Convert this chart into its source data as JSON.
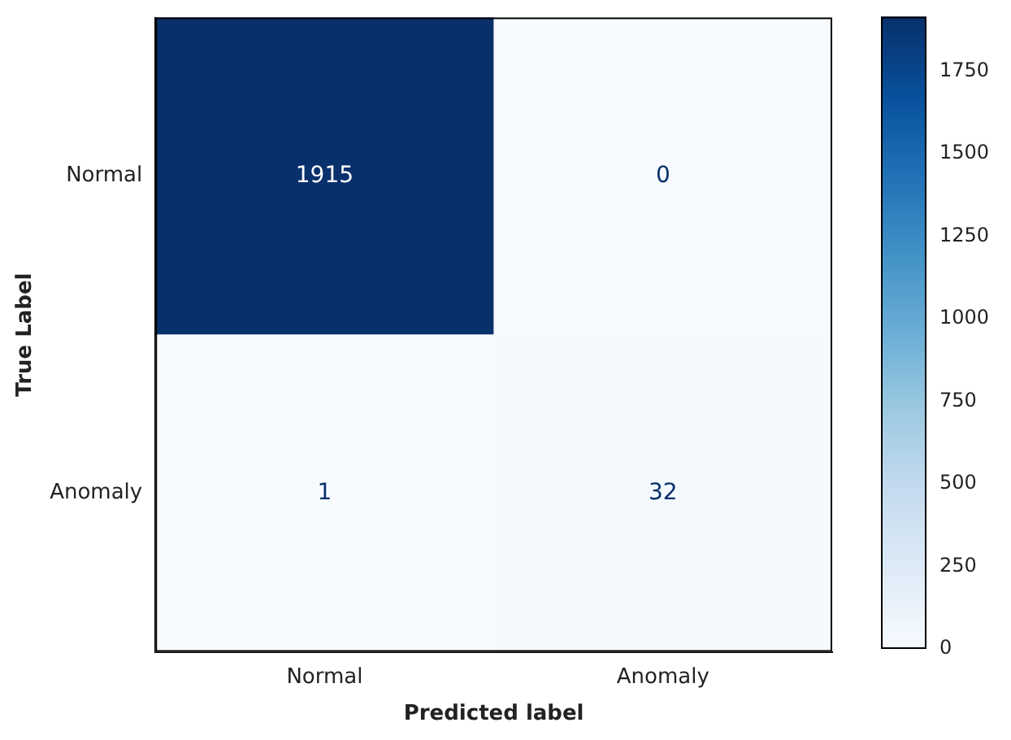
{
  "chart_data": {
    "type": "heatmap",
    "xlabel": "Predicted label",
    "ylabel": "True Label",
    "categories": [
      "Normal",
      "Anomaly"
    ],
    "y_categories": [
      "Normal",
      "Anomaly"
    ],
    "cells": [
      [
        1915,
        0
      ],
      [
        1,
        32
      ]
    ],
    "clim": [
      0,
      1915
    ],
    "cticks": [
      0,
      250,
      500,
      750,
      1000,
      1250,
      1500,
      1750
    ],
    "data_labels": true
  }
}
